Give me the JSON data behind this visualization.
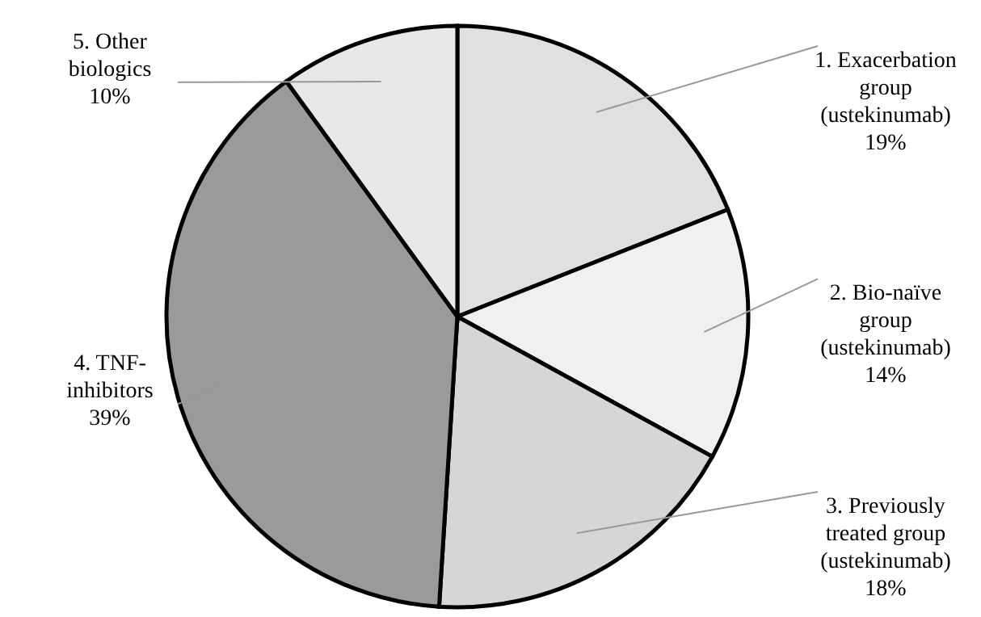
{
  "chart_data": {
    "type": "pie",
    "categories": [
      "1. Exacerbation\ngroup\n(ustekinumab)",
      "2. Bio-naïve\ngroup\n(ustekinumab)",
      "3. Previously\ntreated group\n(ustekinumab)",
      "4. TNF-\ninhibitors",
      "5. Other\nbiologics"
    ],
    "values": [
      19,
      14,
      18,
      39,
      10
    ],
    "colors": [
      "#e0e0e0",
      "#f0f0f0",
      "#d6d6d6",
      "#9a9a9a",
      "#e8e8e8"
    ],
    "value_labels": [
      "19%",
      "14%",
      "18%",
      "39%",
      "10%"
    ]
  }
}
